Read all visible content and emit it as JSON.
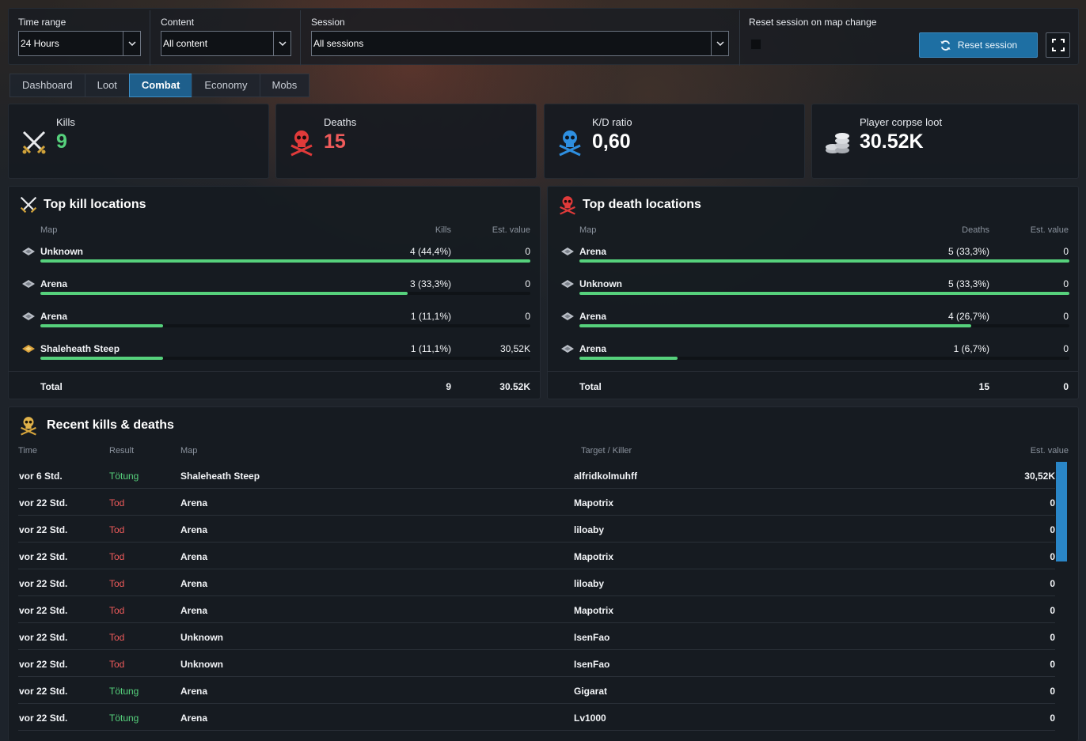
{
  "filters": {
    "time_range": {
      "label": "Time range",
      "value": "24 Hours"
    },
    "content": {
      "label": "Content",
      "value": "All content"
    },
    "session": {
      "label": "Session",
      "value": "All sessions"
    },
    "reset_on_map_change": {
      "label": "Reset session on map change",
      "checked": false
    },
    "reset_button": {
      "label": "Reset session",
      "icon": "refresh-icon"
    },
    "fullscreen_button": {
      "icon": "fullscreen-icon"
    }
  },
  "tabs": [
    {
      "label": "Dashboard",
      "active": false
    },
    {
      "label": "Loot",
      "active": false
    },
    {
      "label": "Combat",
      "active": true
    },
    {
      "label": "Economy",
      "active": false
    },
    {
      "label": "Mobs",
      "active": false
    }
  ],
  "stats": {
    "kills": {
      "label": "Kills",
      "value": "9",
      "color": "#56d17c",
      "icon": "crossed-swords-icon"
    },
    "deaths": {
      "label": "Deaths",
      "value": "15",
      "color": "#ef5b5b",
      "icon": "red-skull-icon"
    },
    "kd": {
      "label": "K/D ratio",
      "value": "0,60",
      "color": "#ffffff",
      "icon": "blue-skull-icon"
    },
    "corpse_loot": {
      "label": "Player corpse loot",
      "value": "30.52K",
      "color": "#ffffff",
      "icon": "silver-coins-icon"
    }
  },
  "top_kills": {
    "title": "Top kill locations",
    "headers": {
      "map": "Map",
      "count": "Kills",
      "value": "Est. value"
    },
    "rows": [
      {
        "map": "Unknown",
        "count": "4 (44,4%)",
        "value": "0",
        "share": 1.0,
        "icon": "diamond-map-icon"
      },
      {
        "map": "Arena",
        "count": "3 (33,3%)",
        "value": "0",
        "share": 0.75,
        "icon": "diamond-map-icon"
      },
      {
        "map": "Arena",
        "count": "1 (11,1%)",
        "value": "0",
        "share": 0.25,
        "icon": "diamond-map-icon"
      },
      {
        "map": "Shaleheath Steep",
        "count": "1 (11,1%)",
        "value": "30,52K",
        "share": 0.25,
        "icon": "gold-map-icon"
      }
    ],
    "total": {
      "label": "Total",
      "count": "9",
      "value": "30.52K"
    }
  },
  "top_deaths": {
    "title": "Top death locations",
    "headers": {
      "map": "Map",
      "count": "Deaths",
      "value": "Est. value"
    },
    "rows": [
      {
        "map": "Arena",
        "count": "5 (33,3%)",
        "value": "0",
        "share": 1.0,
        "icon": "diamond-map-icon"
      },
      {
        "map": "Unknown",
        "count": "5 (33,3%)",
        "value": "0",
        "share": 1.0,
        "icon": "diamond-map-icon"
      },
      {
        "map": "Arena",
        "count": "4 (26,7%)",
        "value": "0",
        "share": 0.8,
        "icon": "diamond-map-icon"
      },
      {
        "map": "Arena",
        "count": "1 (6,7%)",
        "value": "0",
        "share": 0.2,
        "icon": "diamond-map-icon"
      }
    ],
    "total": {
      "label": "Total",
      "count": "15",
      "value": "0"
    }
  },
  "recent": {
    "title": "Recent kills & deaths",
    "headers": {
      "time": "Time",
      "result": "Result",
      "map": "Map",
      "target": "Target / Killer",
      "value": "Est. value"
    },
    "rows": [
      {
        "time": "vor 6 Std.",
        "result": "Tötung",
        "kind": "kill",
        "map": "Shaleheath Steep",
        "target": "alfridkolmuhff",
        "value": "30,52K"
      },
      {
        "time": "vor 22 Std.",
        "result": "Tod",
        "kind": "death",
        "map": "Arena",
        "target": "Mapotrix",
        "value": "0"
      },
      {
        "time": "vor 22 Std.",
        "result": "Tod",
        "kind": "death",
        "map": "Arena",
        "target": "liloaby",
        "value": "0"
      },
      {
        "time": "vor 22 Std.",
        "result": "Tod",
        "kind": "death",
        "map": "Arena",
        "target": "Mapotrix",
        "value": "0"
      },
      {
        "time": "vor 22 Std.",
        "result": "Tod",
        "kind": "death",
        "map": "Arena",
        "target": "liloaby",
        "value": "0"
      },
      {
        "time": "vor 22 Std.",
        "result": "Tod",
        "kind": "death",
        "map": "Arena",
        "target": "Mapotrix",
        "value": "0"
      },
      {
        "time": "vor 22 Std.",
        "result": "Tod",
        "kind": "death",
        "map": "Unknown",
        "target": "IsenFao",
        "value": "0"
      },
      {
        "time": "vor 22 Std.",
        "result": "Tod",
        "kind": "death",
        "map": "Unknown",
        "target": "IsenFao",
        "value": "0"
      },
      {
        "time": "vor 22 Std.",
        "result": "Tötung",
        "kind": "kill",
        "map": "Arena",
        "target": "Gigarat",
        "value": "0"
      },
      {
        "time": "vor 22 Std.",
        "result": "Tötung",
        "kind": "kill",
        "map": "Arena",
        "target": "Lv1000",
        "value": "0"
      }
    ]
  }
}
